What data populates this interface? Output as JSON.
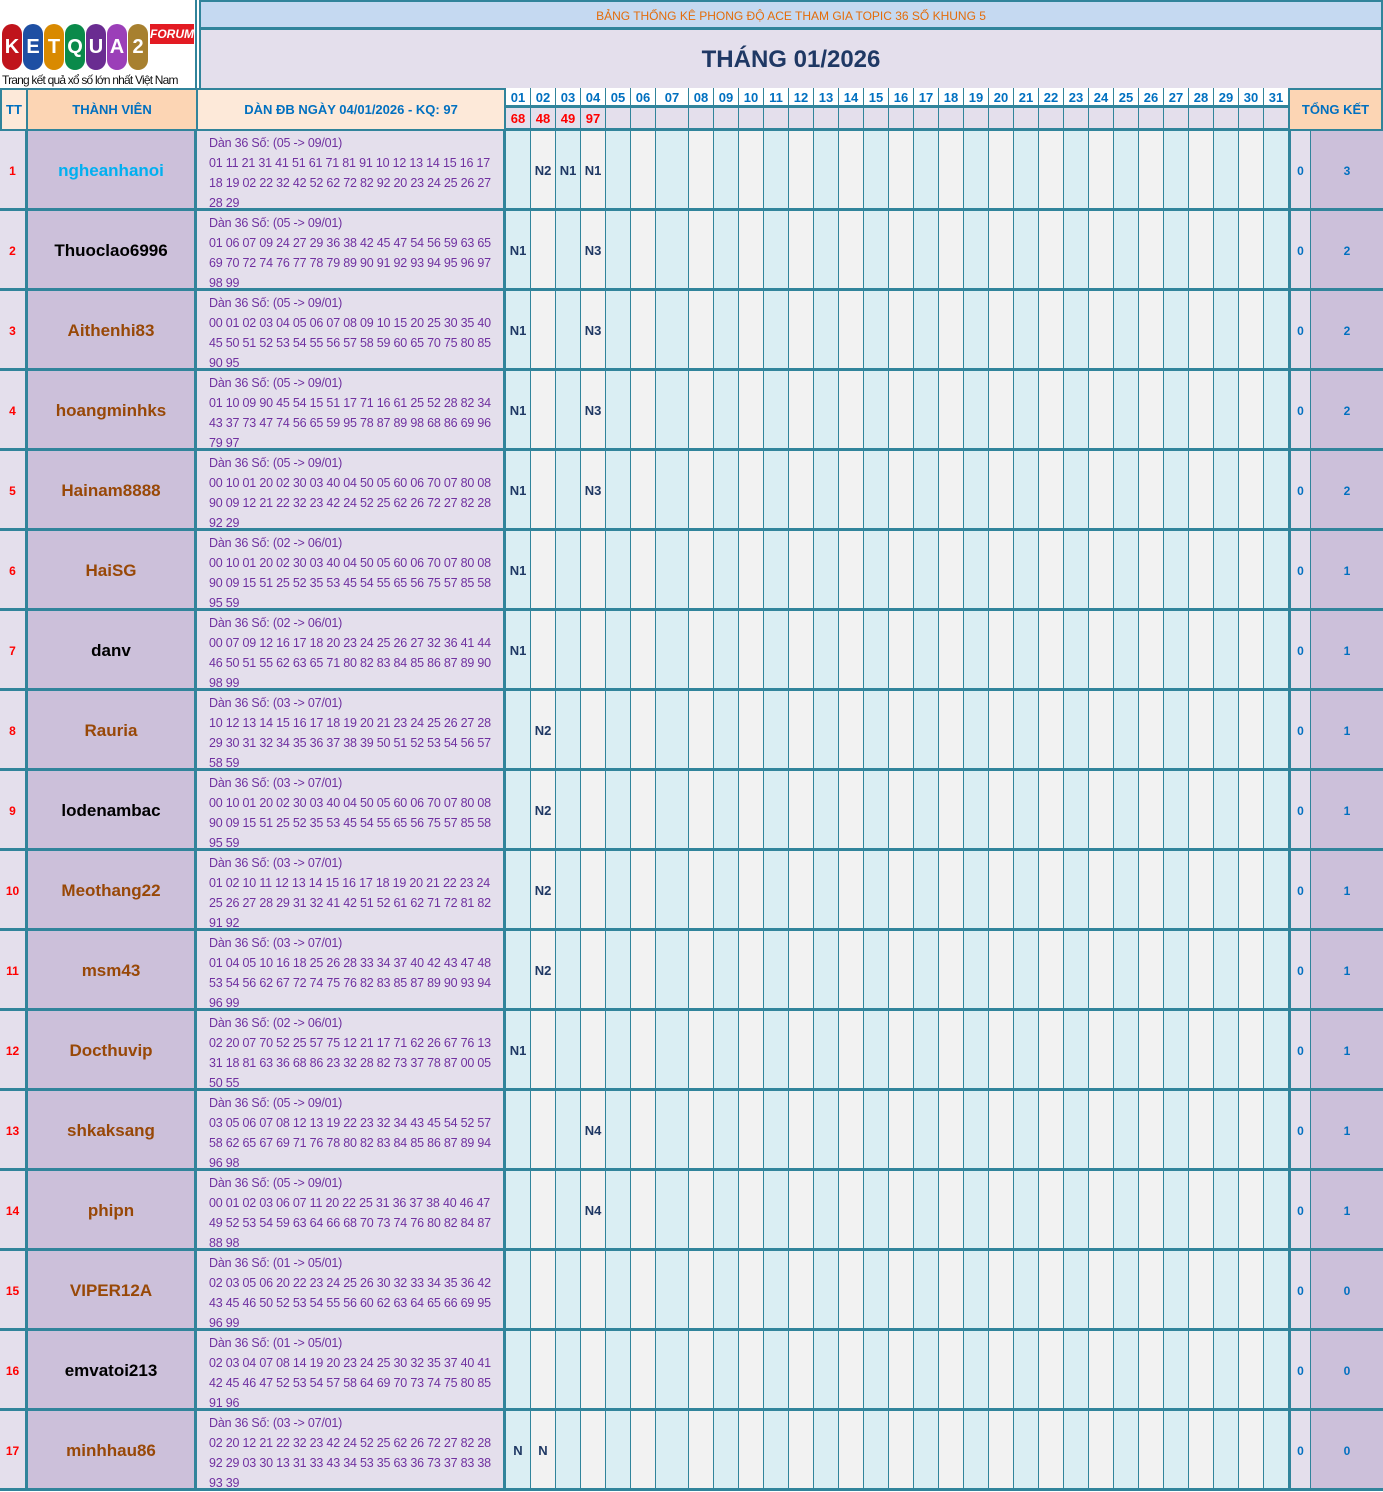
{
  "logo": {
    "text": "KETQUA2",
    "badge": "FORUM",
    "tagline": "Trang kết quả xổ số lớn nhất Việt Nam"
  },
  "header": {
    "title": "BẢNG THỐNG KÊ PHONG ĐỘ ACE THAM GIA TOPIC 36 SỐ KHUNG 5",
    "month": "THÁNG 01/2026",
    "col_tt": "TT",
    "col_member": "THÀNH VIÊN",
    "col_dan": "DÀN ĐB NGÀY 04/01/2026 - KQ: 97",
    "col_summary": "TỔNG KẾT",
    "days": [
      "01",
      "02",
      "03",
      "04",
      "05",
      "06",
      "07",
      "08",
      "09",
      "10",
      "11",
      "12",
      "13",
      "14",
      "15",
      "16",
      "17",
      "18",
      "19",
      "20",
      "21",
      "22",
      "23",
      "24",
      "25",
      "26",
      "27",
      "28",
      "29",
      "30",
      "31"
    ],
    "results": [
      "68",
      "48",
      "49",
      "97"
    ]
  },
  "colors": {
    "border": "#31849b",
    "name_cyan": "#00b0f0",
    "name_black": "#000000",
    "name_brown": "#984807",
    "result_red": "#ff0000",
    "title_orange": "#e46c0a",
    "odd_day": "#daeef3",
    "even_day": "#f2f2f2"
  },
  "rows": [
    {
      "tt": "1",
      "name": "ngheanhanoi",
      "color": "#00b0f0",
      "caption": "Dàn 36 Số: (05 -> 09/01)",
      "numbers": "01 11 21 31 41 51 61 71 81 91 10 12 13 14 15 16 17 18 19 02 22 32 42 52 62 72 82 92 20 23 24 25 26 27 28 29",
      "marks": {
        "02": "N2",
        "03": "N1",
        "04": "N1"
      },
      "zero": "0",
      "total": "3"
    },
    {
      "tt": "2",
      "name": "Thuoclao6996",
      "color": "#000000",
      "caption": "Dàn 36 Số: (05 -> 09/01)",
      "numbers": "01 06 07 09 24 27 29 36 38 42 45 47 54 56 59 63 65 69 70 72 74 76 77 78 79 89 90 91 92 93 94 95 96 97 98 99",
      "marks": {
        "01": "N1",
        "04": "N3"
      },
      "zero": "0",
      "total": "2"
    },
    {
      "tt": "3",
      "name": "Aithenhi83",
      "color": "#984807",
      "caption": "Dàn 36 Số: (05 -> 09/01)",
      "numbers": "00 01 02 03 04 05 06 07 08 09 10 15 20 25 30 35 40 45 50 51 52 53 54 55 56 57 58 59 60 65 70 75 80 85 90 95",
      "marks": {
        "01": "N1",
        "04": "N3"
      },
      "zero": "0",
      "total": "2"
    },
    {
      "tt": "4",
      "name": "hoangminhks",
      "color": "#984807",
      "caption": "Dàn 36 Số: (05 -> 09/01)",
      "numbers": "01 10 09 90 45 54 15 51 17 71 16 61 25 52 28 82 34 43 37 73 47 74 56 65 59 95 78 87 89 98 68 86 69 96 79 97",
      "marks": {
        "01": "N1",
        "04": "N3"
      },
      "zero": "0",
      "total": "2"
    },
    {
      "tt": "5",
      "name": "Hainam8888",
      "color": "#984807",
      "caption": "Dàn 36 Số: (05 -> 09/01)",
      "numbers": "00 10 01 20 02 30 03 40 04 50 05 60 06 70 07 80 08 90 09 12 21 22 32 23 42 24 52 25 62 26 72 27 82 28 92 29",
      "marks": {
        "01": "N1",
        "04": "N3"
      },
      "zero": "0",
      "total": "2"
    },
    {
      "tt": "6",
      "name": "HaiSG",
      "color": "#984807",
      "caption": "Dàn 36 Số: (02 -> 06/01)",
      "numbers": "00 10 01 20 02 30 03 40 04 50 05 60 06 70 07 80 08 90 09 15 51 25 52 35 53 45 54 55 65 56 75 57 85 58 95 59",
      "marks": {
        "01": "N1"
      },
      "zero": "0",
      "total": "1"
    },
    {
      "tt": "7",
      "name": "danv",
      "color": "#000000",
      "caption": "Dàn 36 Số: (02 -> 06/01)",
      "numbers": "00 07 09 12 16 17 18 20 23 24 25 26 27 32 36 41 44 46 50 51 55 62 63 65 71 80 82 83 84 85 86 87 89 90 98 99",
      "marks": {
        "01": "N1"
      },
      "zero": "0",
      "total": "1"
    },
    {
      "tt": "8",
      "name": "Rauria",
      "color": "#984807",
      "caption": "Dàn 36 Số: (03 -> 07/01)",
      "numbers": "10 12 13 14 15 16 17 18 19 20 21 23 24 25 26 27 28 29 30 31 32 34 35 36 37 38 39 50 51 52 53 54 56 57 58 59",
      "marks": {
        "02": "N2"
      },
      "zero": "0",
      "total": "1"
    },
    {
      "tt": "9",
      "name": "lodenambac",
      "color": "#000000",
      "caption": "Dàn 36 Số: (03 -> 07/01)",
      "numbers": "00 10 01 20 02 30 03 40 04 50 05 60 06 70 07 80 08 90 09 15 51 25 52 35 53 45 54 55 65 56 75 57 85 58 95 59",
      "marks": {
        "02": "N2"
      },
      "zero": "0",
      "total": "1"
    },
    {
      "tt": "10",
      "name": "Meothang22",
      "color": "#984807",
      "caption": "Dàn 36 Số: (03 -> 07/01)",
      "numbers": "01 02 10 11 12 13 14 15 16 17 18 19 20 21 22 23 24 25 26 27 28 29 31 32 41 42 51 52 61 62 71 72 81 82 91 92",
      "marks": {
        "02": "N2"
      },
      "zero": "0",
      "total": "1"
    },
    {
      "tt": "11",
      "name": "msm43",
      "color": "#984807",
      "caption": "Dàn 36 Số: (03 -> 07/01)",
      "numbers": "01 04 05 10 16 18 25 26 28 33 34 37 40 42 43 47 48 53 54 56 62 67 72 74 75 76 82 83 85 87 89 90 93 94 96 99",
      "marks": {
        "02": "N2"
      },
      "zero": "0",
      "total": "1"
    },
    {
      "tt": "12",
      "name": "Docthuvip",
      "color": "#984807",
      "caption": "Dàn 36 Số: (02 -> 06/01)",
      "numbers": "02 20 07 70 52 25 57 75 12 21 17 71 62 26 67 76 13 31 18 81 63 36 68 86 23 32 28 82 73 37 78 87 00 05 50 55",
      "marks": {
        "01": "N1"
      },
      "zero": "0",
      "total": "1"
    },
    {
      "tt": "13",
      "name": "shkaksang",
      "color": "#984807",
      "caption": "Dàn 36 Số: (05 -> 09/01)",
      "numbers": "03 05 06 07 08 12 13 19 22 23 32 34 43 45 54 52 57 58 62 65 67 69 71 76 78 80 82 83 84 85 86 87 89 94 96 98",
      "marks": {
        "04": "N4"
      },
      "zero": "0",
      "total": "1"
    },
    {
      "tt": "14",
      "name": "phipn",
      "color": "#984807",
      "caption": "Dàn 36 Số: (05 -> 09/01)",
      "numbers": "00 01 02 03 06 07 11 20 22 25 31 36 37 38 40 46 47 49 52 53 54 59 63 64 66 68 70 73 74 76 80 82 84 87 88 98",
      "marks": {
        "04": "N4"
      },
      "zero": "0",
      "total": "1"
    },
    {
      "tt": "15",
      "name": "VIPER12A",
      "color": "#984807",
      "caption": "Dàn 36 Số: (01 -> 05/01)",
      "numbers": "02 03 05 06 20 22 23 24 25 26 30 32 33 34 35 36 42 43 45 46 50 52 53 54 55 56 60 62 63 64 65 66 69 95 96 99",
      "marks": {},
      "zero": "0",
      "total": "0"
    },
    {
      "tt": "16",
      "name": "emvatoi213",
      "color": "#000000",
      "caption": "Dàn 36 Số: (01 -> 05/01)",
      "numbers": "02 03 04 07 08 14 19 20 23 24 25 30 32 35 37 40 41 42 45 46 47 52 53 54 57 58 64 69 70 73 74 75 80 85 91 96",
      "marks": {},
      "zero": "0",
      "total": "0"
    },
    {
      "tt": "17",
      "name": "minhhau86",
      "color": "#984807",
      "caption": "Dàn 36 Số: (03 -> 07/01)",
      "numbers": "02 20 12 21 22 32 23 42 24 52 25 62 26 72 27 82 28 92 29 03 30 13 31 33 43 34 53 35 63 36 73 37 83 38 93 39",
      "marks": {
        "01": "N",
        "02": "N"
      },
      "zero": "0",
      "total": "0"
    }
  ]
}
